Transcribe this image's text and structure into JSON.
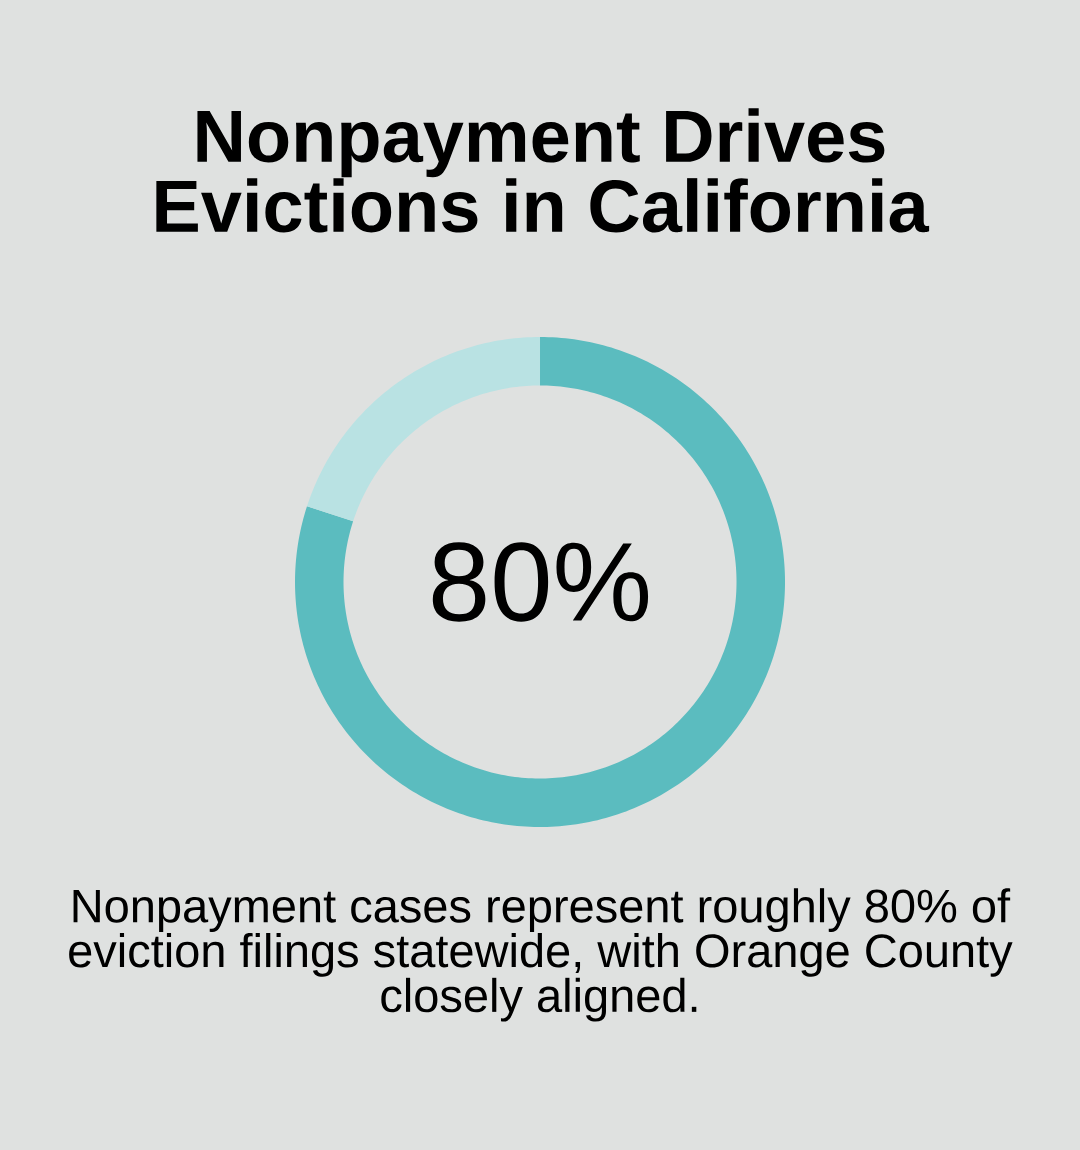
{
  "chart_data": {
    "type": "donut",
    "title": "Nonpayment Drives Evictions in California",
    "categories": [
      null,
      null
    ],
    "values": [
      80,
      20
    ],
    "colors": [
      "#5bbcbf",
      "#b9e2e3"
    ],
    "value_labels": [
      "80%",
      null
    ],
    "annotations": [
      "Nonpayment cases represent roughly 80% of eviction filings statewide, with Orange County closely aligned."
    ]
  }
}
